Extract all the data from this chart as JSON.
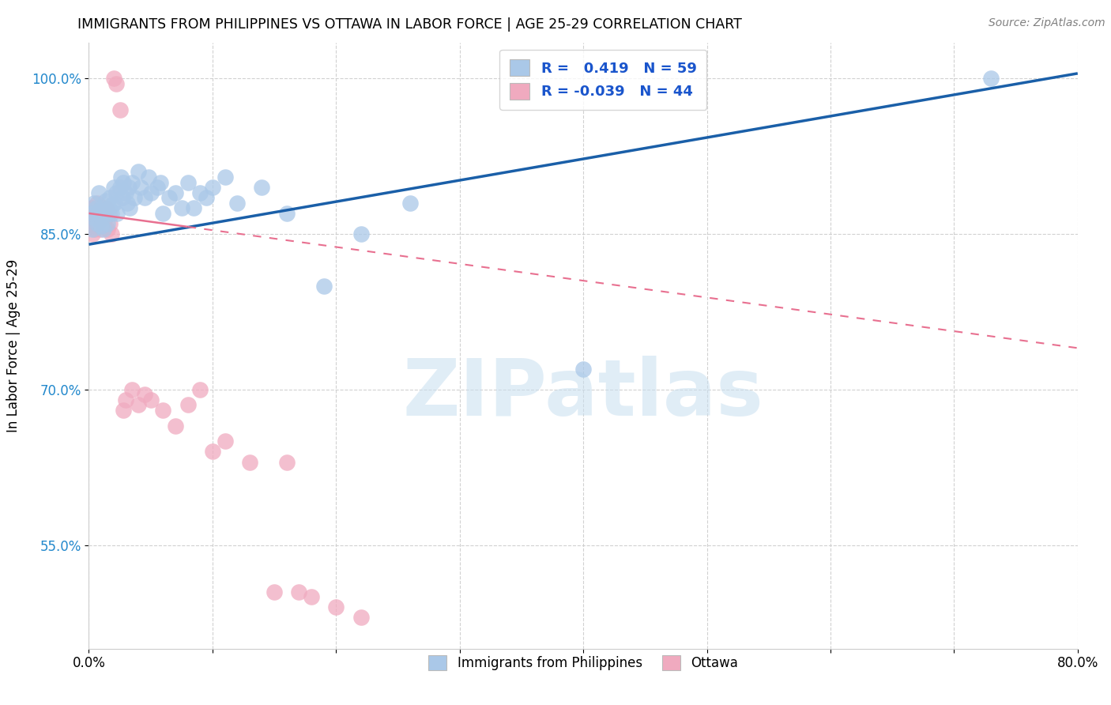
{
  "title": "IMMIGRANTS FROM PHILIPPINES VS OTTAWA IN LABOR FORCE | AGE 25-29 CORRELATION CHART",
  "source": "Source: ZipAtlas.com",
  "ylabel": "In Labor Force | Age 25-29",
  "xlim": [
    0.0,
    0.8
  ],
  "ylim": [
    0.45,
    1.035
  ],
  "xticks": [
    0.0,
    0.1,
    0.2,
    0.3,
    0.4,
    0.5,
    0.6,
    0.7,
    0.8
  ],
  "xticklabels": [
    "0.0%",
    "",
    "",
    "",
    "",
    "",
    "",
    "",
    "80.0%"
  ],
  "yticks": [
    0.55,
    0.7,
    0.85,
    1.0
  ],
  "yticklabels": [
    "55.0%",
    "70.0%",
    "85.0%",
    "100.0%"
  ],
  "blue_R": 0.419,
  "blue_N": 59,
  "pink_R": -0.039,
  "pink_N": 44,
  "blue_color": "#aac8e8",
  "pink_color": "#f0aabf",
  "blue_line_color": "#1a5fa8",
  "pink_line_color": "#e87090",
  "legend_blue_label": "Immigrants from Philippines",
  "legend_pink_label": "Ottawa",
  "blue_scatter_x": [
    0.002,
    0.003,
    0.004,
    0.005,
    0.006,
    0.007,
    0.008,
    0.008,
    0.009,
    0.01,
    0.01,
    0.011,
    0.012,
    0.013,
    0.014,
    0.015,
    0.016,
    0.017,
    0.018,
    0.019,
    0.02,
    0.021,
    0.022,
    0.023,
    0.025,
    0.026,
    0.027,
    0.028,
    0.03,
    0.031,
    0.032,
    0.033,
    0.035,
    0.037,
    0.04,
    0.042,
    0.045,
    0.048,
    0.05,
    0.055,
    0.058,
    0.06,
    0.065,
    0.07,
    0.075,
    0.08,
    0.085,
    0.09,
    0.095,
    0.1,
    0.11,
    0.12,
    0.14,
    0.16,
    0.19,
    0.22,
    0.26,
    0.4,
    0.73
  ],
  "blue_scatter_y": [
    0.87,
    0.855,
    0.88,
    0.865,
    0.875,
    0.86,
    0.872,
    0.89,
    0.868,
    0.858,
    0.875,
    0.865,
    0.855,
    0.87,
    0.882,
    0.86,
    0.875,
    0.885,
    0.87,
    0.878,
    0.895,
    0.88,
    0.89,
    0.87,
    0.895,
    0.905,
    0.885,
    0.9,
    0.89,
    0.88,
    0.895,
    0.875,
    0.9,
    0.885,
    0.91,
    0.895,
    0.885,
    0.905,
    0.89,
    0.895,
    0.9,
    0.87,
    0.885,
    0.89,
    0.875,
    0.9,
    0.875,
    0.89,
    0.885,
    0.895,
    0.905,
    0.88,
    0.895,
    0.87,
    0.8,
    0.85,
    0.88,
    0.72,
    1.0
  ],
  "pink_scatter_x": [
    0.001,
    0.002,
    0.002,
    0.003,
    0.003,
    0.004,
    0.005,
    0.006,
    0.007,
    0.007,
    0.008,
    0.009,
    0.01,
    0.01,
    0.011,
    0.012,
    0.013,
    0.014,
    0.015,
    0.016,
    0.017,
    0.018,
    0.02,
    0.022,
    0.025,
    0.028,
    0.03,
    0.035,
    0.04,
    0.045,
    0.05,
    0.06,
    0.07,
    0.08,
    0.09,
    0.1,
    0.11,
    0.13,
    0.15,
    0.16,
    0.17,
    0.18,
    0.2,
    0.22
  ],
  "pink_scatter_y": [
    0.87,
    0.86,
    0.875,
    0.85,
    0.865,
    0.858,
    0.855,
    0.87,
    0.862,
    0.88,
    0.865,
    0.855,
    0.875,
    0.86,
    0.87,
    0.858,
    0.865,
    0.875,
    0.855,
    0.87,
    0.86,
    0.85,
    1.0,
    0.995,
    0.97,
    0.68,
    0.69,
    0.7,
    0.685,
    0.695,
    0.69,
    0.68,
    0.665,
    0.685,
    0.7,
    0.64,
    0.65,
    0.63,
    0.505,
    0.63,
    0.505,
    0.5,
    0.49,
    0.48
  ],
  "blue_trend_x": [
    0.0,
    0.8
  ],
  "blue_trend_y": [
    0.84,
    1.005
  ],
  "pink_trend_x": [
    0.0,
    0.8
  ],
  "pink_trend_y": [
    0.87,
    0.74
  ],
  "watermark": "ZIPatlas",
  "background_color": "#ffffff",
  "grid_color": "#cccccc"
}
